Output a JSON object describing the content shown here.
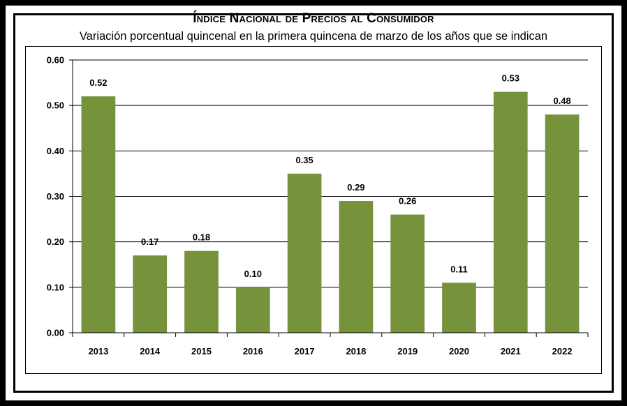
{
  "title": "Índice Nacional de Precios al Consumidor",
  "subtitle": "Variación porcentual quincenal en la primera quincena de marzo de los años que se indican",
  "chart_data": {
    "type": "bar",
    "title": "Índice Nacional de Precios al Consumidor",
    "subtitle": "Variación porcentual quincenal en la primera quincena de marzo de los años que se indican",
    "categories": [
      "2013",
      "2014",
      "2015",
      "2016",
      "2017",
      "2018",
      "2019",
      "2020",
      "2021",
      "2022"
    ],
    "values": [
      0.52,
      0.17,
      0.18,
      0.1,
      0.35,
      0.29,
      0.26,
      0.11,
      0.53,
      0.48
    ],
    "data_labels": [
      "0.52",
      "0.17",
      "0.18",
      "0.10",
      "0.35",
      "0.29",
      "0.26",
      "0.11",
      "0.53",
      "0.48"
    ],
    "yticks": [
      "0.00",
      "0.10",
      "0.20",
      "0.30",
      "0.40",
      "0.50",
      "0.60"
    ],
    "ylim": [
      0,
      0.6
    ],
    "grid": true,
    "bar_color": "#76933C",
    "xlabel": "",
    "ylabel": ""
  }
}
